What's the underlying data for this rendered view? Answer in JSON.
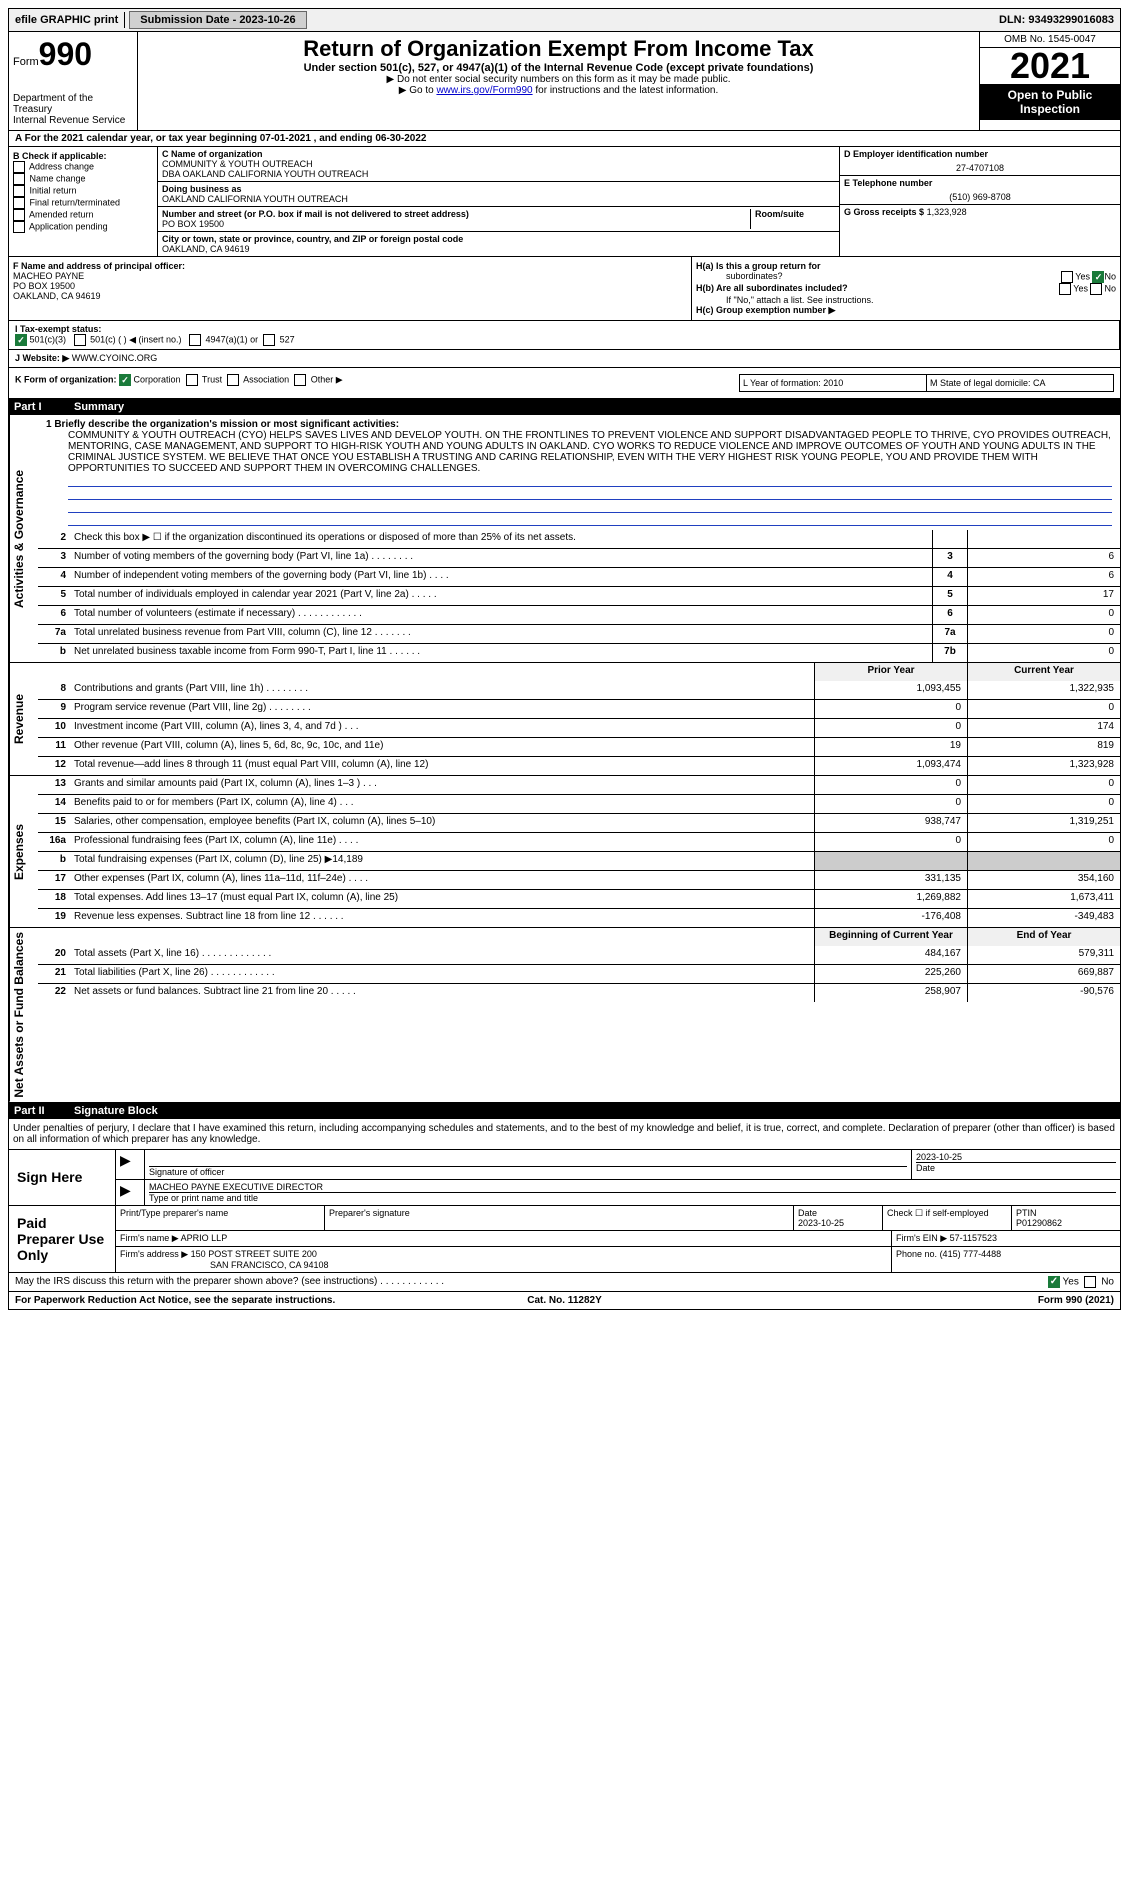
{
  "topbar": {
    "efile": "efile GRAPHIC print",
    "submission_label": "Submission Date - 2023-10-26",
    "dln_label": "DLN: 93493299016083"
  },
  "header": {
    "form_prefix": "Form",
    "form_number": "990",
    "dept": "Department of the Treasury",
    "irs": "Internal Revenue Service",
    "title": "Return of Organization Exempt From Income Tax",
    "subtitle": "Under section 501(c), 527, or 4947(a)(1) of the Internal Revenue Code (except private foundations)",
    "note1": "▶ Do not enter social security numbers on this form as it may be made public.",
    "note2_pre": "▶ Go to ",
    "note2_link": "www.irs.gov/Form990",
    "note2_post": " for instructions and the latest information.",
    "omb": "OMB No. 1545-0047",
    "year": "2021",
    "open": "Open to Public Inspection"
  },
  "row_a": "A For the 2021 calendar year, or tax year beginning 07-01-2021   , and ending 06-30-2022",
  "col_b": {
    "label": "B Check if applicable:",
    "items": [
      "Address change",
      "Name change",
      "Initial return",
      "Final return/terminated",
      "Amended return",
      "Application pending"
    ]
  },
  "col_c": {
    "name_label": "C Name of organization",
    "name": "COMMUNITY & YOUTH OUTREACH",
    "dba1": "DBA OAKLAND CALIFORNIA YOUTH OUTREACH",
    "dba_label": "Doing business as",
    "dba2": "OAKLAND CALIFORNIA YOUTH OUTREACH",
    "addr_label": "Number and street (or P.O. box if mail is not delivered to street address)",
    "room_label": "Room/suite",
    "addr": "PO BOX 19500",
    "city_label": "City or town, state or province, country, and ZIP or foreign postal code",
    "city": "OAKLAND, CA  94619"
  },
  "col_d": {
    "ein_label": "D Employer identification number",
    "ein": "27-4707108",
    "tel_label": "E Telephone number",
    "tel": "(510) 969-8708",
    "gross_label": "G Gross receipts $",
    "gross": "1,323,928"
  },
  "row_f": {
    "label": "F  Name and address of principal officer:",
    "name": "MACHEO PAYNE",
    "addr1": "PO BOX 19500",
    "addr2": "OAKLAND, CA  94619"
  },
  "row_h": {
    "a_label": "H(a)  Is this a group return for",
    "a_sub": "subordinates?",
    "b_label": "H(b)  Are all subordinates included?",
    "note": "If \"No,\" attach a list. See instructions.",
    "c_label": "H(c)  Group exemption number ▶",
    "yes": "Yes",
    "no": "No"
  },
  "row_i": {
    "label": "I   Tax-exempt status:",
    "opt1": "501(c)(3)",
    "opt2": "501(c) (  ) ◀ (insert no.)",
    "opt3": "4947(a)(1) or",
    "opt4": "527"
  },
  "row_j": {
    "label": "J   Website: ▶",
    "value": "WWW.CYOINC.ORG"
  },
  "row_k": {
    "label": "K Form of organization:",
    "corp": "Corporation",
    "trust": "Trust",
    "assoc": "Association",
    "other": "Other ▶"
  },
  "row_l": {
    "label": "L Year of formation: 2010"
  },
  "row_m": {
    "label": "M State of legal domicile: CA"
  },
  "parts": {
    "p1_label": "Part I",
    "p1_title": "Summary",
    "p2_label": "Part II",
    "p2_title": "Signature Block"
  },
  "sections": {
    "activities": "Activities & Governance",
    "revenue": "Revenue",
    "expenses": "Expenses",
    "netassets": "Net Assets or Fund Balances"
  },
  "mission": {
    "label": "1   Briefly describe the organization's mission or most significant activities:",
    "text": "COMMUNITY & YOUTH OUTREACH (CYO) HELPS SAVES LIVES AND DEVELOP YOUTH. ON THE FRONTLINES TO PREVENT VIOLENCE AND SUPPORT DISADVANTAGED PEOPLE TO THRIVE, CYO PROVIDES OUTREACH, MENTORING, CASE MANAGEMENT, AND SUPPORT TO HIGH-RISK YOUTH AND YOUNG ADULTS IN OAKLAND. CYO WORKS TO REDUCE VIOLENCE AND IMPROVE OUTCOMES OF YOUTH AND YOUNG ADULTS IN THE CRIMINAL JUSTICE SYSTEM. WE BELIEVE THAT ONCE YOU ESTABLISH A TRUSTING AND CARING RELATIONSHIP, EVEN WITH THE VERY HIGHEST RISK YOUNG PEOPLE, YOU AND PROVIDE THEM WITH OPPORTUNITIES TO SUCCEED AND SUPPORT THEM IN OVERCOMING CHALLENGES."
  },
  "lines_gov": [
    {
      "n": "2",
      "t": "Check this box ▶ ☐ if the organization discontinued its operations or disposed of more than 25% of its net assets.",
      "box": "",
      "v": ""
    },
    {
      "n": "3",
      "t": "Number of voting members of the governing body (Part VI, line 1a)  .  .  .  .  .  .  .  .",
      "box": "3",
      "v": "6"
    },
    {
      "n": "4",
      "t": "Number of independent voting members of the governing body (Part VI, line 1b)  .  .  .  .",
      "box": "4",
      "v": "6"
    },
    {
      "n": "5",
      "t": "Total number of individuals employed in calendar year 2021 (Part V, line 2a)  .  .  .  .  .",
      "box": "5",
      "v": "17"
    },
    {
      "n": "6",
      "t": "Total number of volunteers (estimate if necessary)  .  .  .  .  .  .  .  .  .  .  .  .",
      "box": "6",
      "v": "0"
    },
    {
      "n": "7a",
      "t": "Total unrelated business revenue from Part VIII, column (C), line 12  .  .  .  .  .  .  .",
      "box": "7a",
      "v": "0"
    },
    {
      "n": "b",
      "t": "Net unrelated business taxable income from Form 990-T, Part I, line 11  .  .  .  .  .  .",
      "box": "7b",
      "v": "0"
    }
  ],
  "col_headers": {
    "prior": "Prior Year",
    "current": "Current Year",
    "boy": "Beginning of Current Year",
    "eoy": "End of Year"
  },
  "lines_rev": [
    {
      "n": "8",
      "t": "Contributions and grants (Part VIII, line 1h)  .  .  .  .  .  .  .  .",
      "p": "1,093,455",
      "c": "1,322,935"
    },
    {
      "n": "9",
      "t": "Program service revenue (Part VIII, line 2g)  .  .  .  .  .  .  .  .",
      "p": "0",
      "c": "0"
    },
    {
      "n": "10",
      "t": "Investment income (Part VIII, column (A), lines 3, 4, and 7d )  .  .  .",
      "p": "0",
      "c": "174"
    },
    {
      "n": "11",
      "t": "Other revenue (Part VIII, column (A), lines 5, 6d, 8c, 9c, 10c, and 11e)",
      "p": "19",
      "c": "819"
    },
    {
      "n": "12",
      "t": "Total revenue—add lines 8 through 11 (must equal Part VIII, column (A), line 12)",
      "p": "1,093,474",
      "c": "1,323,928"
    }
  ],
  "lines_exp": [
    {
      "n": "13",
      "t": "Grants and similar amounts paid (Part IX, column (A), lines 1–3 )  .  .  .",
      "p": "0",
      "c": "0"
    },
    {
      "n": "14",
      "t": "Benefits paid to or for members (Part IX, column (A), line 4)  .  .  .",
      "p": "0",
      "c": "0"
    },
    {
      "n": "15",
      "t": "Salaries, other compensation, employee benefits (Part IX, column (A), lines 5–10)",
      "p": "938,747",
      "c": "1,319,251"
    },
    {
      "n": "16a",
      "t": "Professional fundraising fees (Part IX, column (A), line 11e)  .  .  .  .",
      "p": "0",
      "c": "0"
    },
    {
      "n": "b",
      "t": "Total fundraising expenses (Part IX, column (D), line 25) ▶14,189",
      "p": "",
      "c": "",
      "grey": true
    },
    {
      "n": "17",
      "t": "Other expenses (Part IX, column (A), lines 11a–11d, 11f–24e)  .  .  .  .",
      "p": "331,135",
      "c": "354,160"
    },
    {
      "n": "18",
      "t": "Total expenses. Add lines 13–17 (must equal Part IX, column (A), line 25)",
      "p": "1,269,882",
      "c": "1,673,411"
    },
    {
      "n": "19",
      "t": "Revenue less expenses. Subtract line 18 from line 12  .  .  .  .  .  .",
      "p": "-176,408",
      "c": "-349,483"
    }
  ],
  "lines_net": [
    {
      "n": "20",
      "t": "Total assets (Part X, line 16)  .  .  .  .  .  .  .  .  .  .  .  .  .",
      "p": "484,167",
      "c": "579,311"
    },
    {
      "n": "21",
      "t": "Total liabilities (Part X, line 26)  .  .  .  .  .  .  .  .  .  .  .  .",
      "p": "225,260",
      "c": "669,887"
    },
    {
      "n": "22",
      "t": "Net assets or fund balances. Subtract line 21 from line 20  .  .  .  .  .",
      "p": "258,907",
      "c": "-90,576"
    }
  ],
  "sig": {
    "penalty": "Under penalties of perjury, I declare that I have examined this return, including accompanying schedules and statements, and to the best of my knowledge and belief, it is true, correct, and complete. Declaration of preparer (other than officer) is based on all information of which preparer has any knowledge.",
    "sign_here": "Sign Here",
    "sig_officer": "Signature of officer",
    "date_label": "Date",
    "date": "2023-10-25",
    "officer_name": "MACHEO PAYNE  EXECUTIVE DIRECTOR",
    "type_name": "Type or print name and title",
    "paid_prep": "Paid Preparer Use Only",
    "prep_name_label": "Print/Type preparer's name",
    "prep_sig_label": "Preparer's signature",
    "prep_date_label": "Date",
    "prep_date": "2023-10-25",
    "check_self": "Check ☐ if self-employed",
    "ptin_label": "PTIN",
    "ptin": "P01290862",
    "firm_name_label": "Firm's name    ▶",
    "firm_name": "APRIO LLP",
    "firm_ein_label": "Firm's EIN ▶",
    "firm_ein": "57-1157523",
    "firm_addr_label": "Firm's address ▶",
    "firm_addr": "150 POST STREET SUITE 200",
    "firm_city": "SAN FRANCISCO, CA  94108",
    "phone_label": "Phone no.",
    "phone": "(415) 777-4488",
    "discuss": "May the IRS discuss this return with the preparer shown above? (see instructions)  .  .  .  .  .  .  .  .  .  .  .  .",
    "yes": "Yes",
    "no": "No"
  },
  "footer": {
    "left": "For Paperwork Reduction Act Notice, see the separate instructions.",
    "mid": "Cat. No. 11282Y",
    "right": "Form 990 (2021)"
  }
}
